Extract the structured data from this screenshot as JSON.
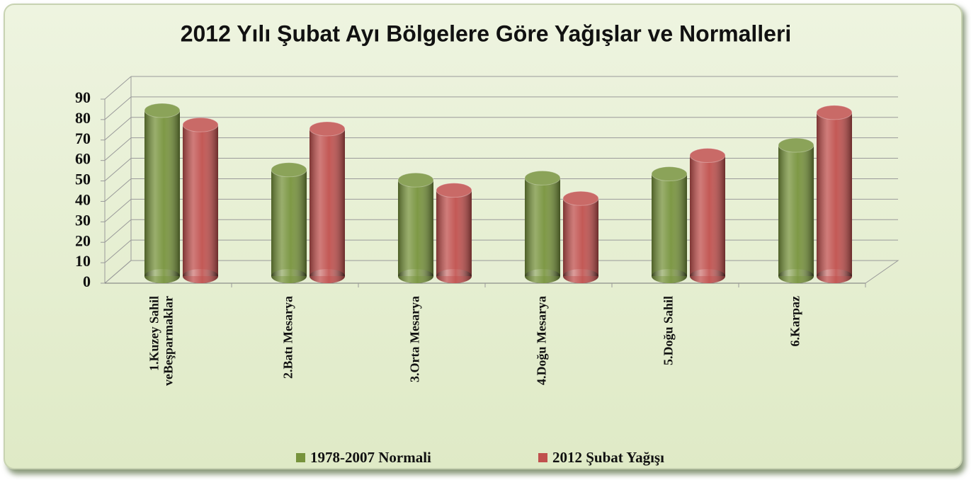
{
  "chart_data": {
    "type": "bar3d",
    "title": "2012 Yılı Şubat Ayı Bölgelere Göre Yağışlar ve Normalleri",
    "categories": [
      "1.Kuzey  Sahil\nveBeşparmaklar",
      "2.Batı Mesarya",
      "3.Orta Mesarya",
      "4.Doğu Mesarya",
      "5.Doğu Sahil",
      "6.Karpaz"
    ],
    "series": [
      {
        "name": "1978-2007 Normali",
        "color": "#77933c",
        "values": [
          81,
          52,
          47,
          48,
          50,
          64
        ]
      },
      {
        "name": "2012 Şubat Yağışı",
        "color": "#c0504d",
        "values": [
          74,
          72,
          42,
          38,
          59,
          80
        ]
      }
    ],
    "ylim": [
      0,
      90
    ],
    "yticks": [
      0,
      10,
      20,
      30,
      40,
      50,
      60,
      70,
      80,
      90
    ],
    "grid": true,
    "legend": "bottom"
  }
}
